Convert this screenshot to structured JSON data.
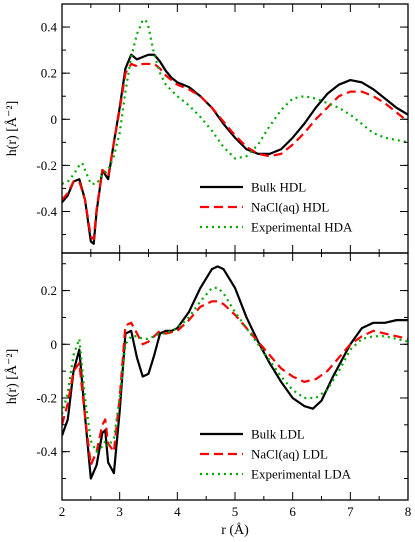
{
  "chart_data": {
    "type": "line",
    "shared_x": {
      "label": "r (Å)",
      "range": [
        2,
        8
      ],
      "ticks": [
        2,
        3,
        4,
        5,
        6,
        7,
        8
      ],
      "tick_labels": [
        "2",
        "3",
        "4",
        "5",
        "6",
        "7",
        "8"
      ]
    },
    "styles": {
      "colors": [
        "#000000",
        "#ff0000",
        "#00aa00"
      ],
      "dashes": [
        "",
        "9,5",
        "2,4"
      ],
      "widths": [
        2.2,
        2.2,
        2.2
      ]
    },
    "panels": [
      {
        "id": "top",
        "ylabel": "h(r) [Å⁻²]",
        "ylim": [
          -0.58,
          0.5
        ],
        "yticks": [
          -0.4,
          -0.2,
          0,
          0.2,
          0.4
        ],
        "ytick_labels": [
          "-0.4",
          "-0.2",
          "0",
          "0.2",
          "0.4"
        ],
        "legend_position": "bottom-right",
        "series": [
          {
            "name": "Bulk HDL",
            "x": [
              2.0,
              2.1,
              2.2,
              2.3,
              2.4,
              2.5,
              2.55,
              2.6,
              2.7,
              2.75,
              2.8,
              2.9,
              3.0,
              3.1,
              3.2,
              3.3,
              3.4,
              3.5,
              3.6,
              3.7,
              3.8,
              3.9,
              4.0,
              4.2,
              4.4,
              4.6,
              4.8,
              5.0,
              5.2,
              5.4,
              5.6,
              5.8,
              6.0,
              6.2,
              6.4,
              6.6,
              6.8,
              7.0,
              7.2,
              7.4,
              7.6,
              7.8,
              8.0
            ],
            "y": [
              -0.36,
              -0.33,
              -0.27,
              -0.26,
              -0.35,
              -0.53,
              -0.54,
              -0.4,
              -0.22,
              -0.24,
              -0.26,
              -0.1,
              0.05,
              0.22,
              0.28,
              0.26,
              0.27,
              0.28,
              0.28,
              0.25,
              0.21,
              0.18,
              0.16,
              0.14,
              0.1,
              0.05,
              -0.02,
              -0.08,
              -0.13,
              -0.15,
              -0.15,
              -0.13,
              -0.08,
              -0.02,
              0.05,
              0.11,
              0.15,
              0.17,
              0.16,
              0.13,
              0.09,
              0.05,
              0.02
            ]
          },
          {
            "name": "NaCl(aq) HDL",
            "x": [
              2.0,
              2.1,
              2.2,
              2.3,
              2.4,
              2.5,
              2.55,
              2.6,
              2.7,
              2.75,
              2.8,
              2.9,
              3.0,
              3.1,
              3.2,
              3.3,
              3.4,
              3.5,
              3.6,
              3.7,
              3.8,
              3.9,
              4.0,
              4.2,
              4.4,
              4.6,
              4.8,
              5.0,
              5.2,
              5.4,
              5.6,
              5.8,
              6.0,
              6.2,
              6.4,
              6.6,
              6.8,
              7.0,
              7.2,
              7.4,
              7.6,
              7.8,
              8.0
            ],
            "y": [
              -0.35,
              -0.32,
              -0.27,
              -0.27,
              -0.35,
              -0.51,
              -0.52,
              -0.39,
              -0.22,
              -0.23,
              -0.25,
              -0.1,
              0.04,
              0.2,
              0.24,
              0.23,
              0.24,
              0.24,
              0.24,
              0.22,
              0.19,
              0.17,
              0.15,
              0.13,
              0.1,
              0.05,
              -0.01,
              -0.07,
              -0.12,
              -0.15,
              -0.16,
              -0.15,
              -0.11,
              -0.06,
              0.0,
              0.05,
              0.1,
              0.12,
              0.12,
              0.1,
              0.07,
              0.03,
              -0.01
            ]
          },
          {
            "name": "Experimental HDA",
            "x": [
              2.0,
              2.1,
              2.2,
              2.3,
              2.35,
              2.4,
              2.5,
              2.6,
              2.7,
              2.8,
              2.9,
              3.0,
              3.1,
              3.2,
              3.3,
              3.4,
              3.45,
              3.5,
              3.6,
              3.7,
              3.8,
              4.0,
              4.2,
              4.4,
              4.6,
              4.8,
              5.0,
              5.2,
              5.4,
              5.6,
              5.8,
              6.0,
              6.2,
              6.4,
              6.6,
              6.8,
              7.0,
              7.2,
              7.4,
              7.6,
              7.8,
              8.0
            ],
            "y": [
              -0.28,
              -0.27,
              -0.24,
              -0.2,
              -0.19,
              -0.22,
              -0.28,
              -0.28,
              -0.24,
              -0.22,
              -0.16,
              -0.06,
              0.12,
              0.27,
              0.37,
              0.43,
              0.43,
              0.4,
              0.28,
              0.2,
              0.15,
              0.1,
              0.06,
              0.01,
              -0.05,
              -0.12,
              -0.17,
              -0.16,
              -0.11,
              -0.03,
              0.04,
              0.09,
              0.1,
              0.09,
              0.07,
              0.05,
              0.02,
              -0.02,
              -0.06,
              -0.08,
              -0.09,
              -0.1
            ]
          }
        ]
      },
      {
        "id": "bottom",
        "ylabel": "h(r) [Å⁻²]",
        "ylim": [
          -0.58,
          0.34
        ],
        "yticks": [
          -0.4,
          -0.2,
          0,
          0.2
        ],
        "ytick_labels": [
          "-0.4",
          "-0.2",
          "0",
          "0.2"
        ],
        "legend_position": "bottom-right",
        "series": [
          {
            "name": "Bulk LDL",
            "x": [
              2.0,
              2.1,
              2.2,
              2.3,
              2.4,
              2.5,
              2.6,
              2.7,
              2.75,
              2.8,
              2.9,
              3.0,
              3.1,
              3.2,
              3.3,
              3.4,
              3.5,
              3.6,
              3.7,
              3.8,
              3.9,
              4.0,
              4.2,
              4.4,
              4.6,
              4.7,
              4.8,
              5.0,
              5.2,
              5.4,
              5.6,
              5.8,
              6.0,
              6.2,
              6.35,
              6.5,
              6.7,
              7.0,
              7.2,
              7.4,
              7.6,
              7.8,
              8.0
            ],
            "y": [
              -0.34,
              -0.28,
              -0.1,
              -0.02,
              -0.27,
              -0.5,
              -0.45,
              -0.33,
              -0.32,
              -0.44,
              -0.48,
              -0.25,
              0.04,
              0.05,
              -0.05,
              -0.12,
              -0.11,
              -0.04,
              0.04,
              0.05,
              0.05,
              0.06,
              0.12,
              0.21,
              0.28,
              0.29,
              0.28,
              0.21,
              0.1,
              0.01,
              -0.07,
              -0.14,
              -0.2,
              -0.23,
              -0.24,
              -0.21,
              -0.12,
              0.0,
              0.06,
              0.08,
              0.08,
              0.09,
              0.09
            ]
          },
          {
            "name": "NaCl(aq) LDL",
            "x": [
              2.0,
              2.1,
              2.2,
              2.3,
              2.4,
              2.5,
              2.6,
              2.7,
              2.75,
              2.8,
              2.9,
              3.0,
              3.1,
              3.2,
              3.3,
              3.4,
              3.5,
              3.6,
              3.7,
              3.8,
              4.0,
              4.2,
              4.4,
              4.6,
              4.7,
              4.8,
              5.0,
              5.2,
              5.4,
              5.6,
              5.8,
              6.0,
              6.2,
              6.4,
              6.6,
              6.8,
              7.0,
              7.2,
              7.4,
              7.6,
              7.8,
              8.0
            ],
            "y": [
              -0.3,
              -0.22,
              -0.1,
              -0.07,
              -0.27,
              -0.45,
              -0.4,
              -0.3,
              -0.28,
              -0.37,
              -0.4,
              -0.2,
              0.07,
              0.08,
              0.04,
              0.0,
              0.01,
              0.03,
              0.05,
              0.04,
              0.05,
              0.09,
              0.14,
              0.16,
              0.16,
              0.15,
              0.11,
              0.06,
              0.01,
              -0.04,
              -0.09,
              -0.12,
              -0.14,
              -0.13,
              -0.1,
              -0.05,
              0.0,
              0.03,
              0.05,
              0.04,
              0.03,
              0.02
            ]
          },
          {
            "name": "Experimental LDA",
            "x": [
              2.0,
              2.1,
              2.2,
              2.3,
              2.4,
              2.5,
              2.6,
              2.7,
              2.75,
              2.8,
              2.9,
              3.0,
              3.1,
              3.2,
              3.3,
              3.4,
              3.5,
              3.6,
              3.7,
              3.8,
              4.0,
              4.2,
              4.4,
              4.6,
              4.7,
              4.8,
              5.0,
              5.2,
              5.4,
              5.6,
              5.8,
              6.0,
              6.2,
              6.4,
              6.6,
              6.8,
              7.0,
              7.2,
              7.4,
              7.6,
              7.8,
              8.0
            ],
            "y": [
              -0.26,
              -0.18,
              -0.04,
              0.02,
              -0.2,
              -0.36,
              -0.4,
              -0.38,
              -0.36,
              -0.38,
              -0.35,
              -0.2,
              0.0,
              0.03,
              0.03,
              0.02,
              0.02,
              0.03,
              0.04,
              0.04,
              0.06,
              0.1,
              0.16,
              0.21,
              0.21,
              0.19,
              0.12,
              0.06,
              0.0,
              -0.06,
              -0.12,
              -0.17,
              -0.2,
              -0.2,
              -0.17,
              -0.1,
              -0.02,
              0.02,
              0.03,
              0.03,
              0.02,
              0.01
            ]
          }
        ]
      }
    ]
  }
}
